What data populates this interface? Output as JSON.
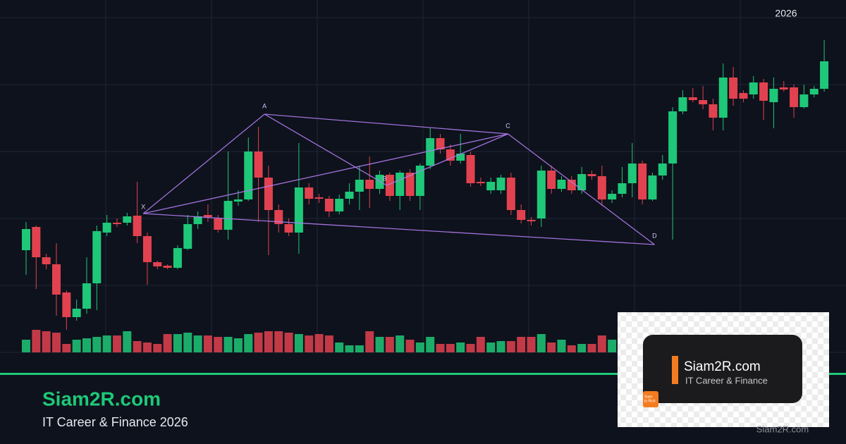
{
  "chart_data": {
    "type": "candlestick",
    "annotation": "2026",
    "open": [
      145,
      178,
      135,
      125,
      85,
      50,
      62,
      98,
      170,
      184,
      184,
      194,
      165,
      128,
      123,
      120,
      147,
      182,
      195,
      190,
      174,
      214,
      217,
      285,
      248,
      202,
      182,
      170,
      234,
      220,
      218,
      200,
      218,
      228,
      245,
      232,
      252,
      222,
      255,
      222,
      265,
      304,
      288,
      272,
      280,
      242,
      230,
      230,
      248,
      202,
      188,
      190,
      258,
      232,
      245,
      230,
      253,
      250,
      217,
      225,
      240,
      268,
      217,
      251,
      268,
      342,
      362,
      358,
      352,
      333,
      390,
      368,
      366,
      383,
      355,
      376,
      376,
      348,
      366,
      374
    ],
    "high": [
      185,
      180,
      140,
      155,
      88,
      75,
      135,
      180,
      195,
      190,
      198,
      242,
      170,
      130,
      125,
      152,
      195,
      200,
      210,
      195,
      285,
      230,
      305,
      320,
      265,
      210,
      190,
      297,
      240,
      225,
      222,
      224,
      240,
      265,
      278,
      258,
      255,
      258,
      260,
      268,
      318,
      310,
      295,
      310,
      285,
      248,
      248,
      252,
      255,
      210,
      192,
      265,
      265,
      250,
      250,
      263,
      258,
      265,
      230,
      263,
      297,
      272,
      255,
      280,
      348,
      372,
      375,
      378,
      360,
      410,
      405,
      372,
      392,
      388,
      390,
      385,
      380,
      380,
      378,
      443
    ],
    "low": [
      110,
      90,
      118,
      52,
      32,
      45,
      55,
      60,
      165,
      178,
      180,
      155,
      96,
      118,
      118,
      118,
      145,
      175,
      185,
      170,
      160,
      208,
      215,
      185,
      138,
      170,
      165,
      140,
      210,
      212,
      192,
      196,
      210,
      202,
      205,
      225,
      215,
      202,
      215,
      202,
      260,
      282,
      265,
      268,
      235,
      236,
      225,
      225,
      195,
      183,
      180,
      178,
      225,
      228,
      225,
      225,
      245,
      208,
      212,
      220,
      220,
      210,
      215,
      245,
      160,
      338,
      355,
      345,
      315,
      315,
      350,
      355,
      360,
      330,
      318,
      370,
      333,
      346,
      362,
      370
    ],
    "close": [
      175,
      135,
      125,
      82,
      50,
      62,
      98,
      172,
      184,
      182,
      193,
      165,
      128,
      122,
      120,
      148,
      182,
      193,
      192,
      174,
      215,
      217,
      285,
      248,
      202,
      182,
      170,
      234,
      218,
      218,
      200,
      218,
      228,
      245,
      232,
      252,
      222,
      255,
      222,
      265,
      304,
      288,
      272,
      282,
      240,
      240,
      242,
      248,
      202,
      188,
      186,
      258,
      232,
      245,
      230,
      253,
      250,
      217,
      225,
      240,
      268,
      217,
      251,
      268,
      342,
      362,
      358,
      352,
      333,
      390,
      360,
      360,
      383,
      357,
      374,
      373,
      348,
      366,
      374,
      413
    ],
    "volume": [
      18,
      32,
      30,
      28,
      12,
      18,
      20,
      22,
      24,
      24,
      30,
      16,
      14,
      12,
      26,
      26,
      28,
      24,
      24,
      22,
      22,
      20,
      26,
      28,
      30,
      30,
      28,
      26,
      24,
      26,
      24,
      14,
      10,
      10,
      30,
      22,
      22,
      24,
      18,
      14,
      22,
      12,
      12,
      14,
      12,
      22,
      14,
      16,
      16,
      22,
      22,
      26,
      14,
      18,
      10,
      12,
      12,
      24,
      18,
      16,
      20,
      22,
      18,
      20,
      24,
      22,
      20,
      18,
      22,
      24,
      20,
      18,
      22,
      20,
      18,
      22,
      16,
      18,
      20,
      14
    ],
    "ylim": [
      0,
      500
    ],
    "yticks": [
      0,
      95,
      190,
      285,
      380,
      475
    ],
    "grid": true,
    "volume_lim": [
      0,
      40
    ],
    "up_color": "#1ec878",
    "down_color": "#e2424f",
    "pattern_color": "#b07cf0",
    "pattern_points": [
      {
        "label": "X",
        "x": 11.6,
        "y": 197
      },
      {
        "label": "A",
        "x": 23.6,
        "y": 338
      },
      {
        "label": "B",
        "x": 35.7,
        "y": 237
      },
      {
        "label": "C",
        "x": 47.7,
        "y": 310
      },
      {
        "label": "D",
        "x": 62.2,
        "y": 153
      }
    ]
  },
  "branding": {
    "title": "Siam2R.com",
    "subtitle": "IT Career & Finance 2026"
  },
  "logo": {
    "title": "Siam2R.com",
    "subtitle": "IT Career & Finance",
    "badge_line1": "Siam",
    "badge_line2": "to Rich"
  },
  "watermark": "Siam2R.com"
}
